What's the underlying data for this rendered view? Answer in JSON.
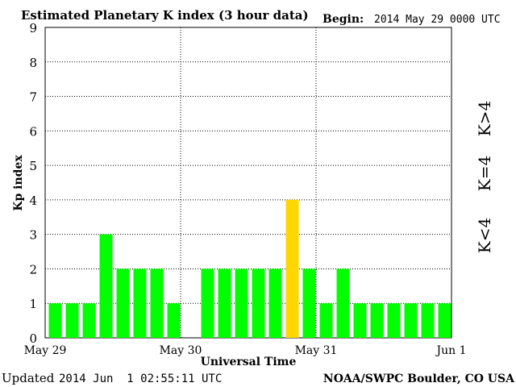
{
  "chart_data": {
    "type": "bar",
    "title": "Estimated Planetary K index (3 hour data)",
    "begin_label": "Begin:",
    "begin_value": "2014 May 29 0000 UTC",
    "xlabel": "Universal Time",
    "ylabel": "Kp index",
    "ylim": [
      0,
      9
    ],
    "y_ticks": [
      "0",
      "1",
      "2",
      "3",
      "4",
      "5",
      "6",
      "7",
      "8",
      "9"
    ],
    "x_ticks": [
      "May 29",
      "May 30",
      "May 31",
      "Jun 1"
    ],
    "grid": true,
    "values": [
      1,
      1,
      1,
      3,
      2,
      2,
      2,
      1,
      0,
      2,
      2,
      2,
      2,
      2,
      4,
      2,
      1,
      2,
      1,
      1,
      1,
      1,
      1,
      1
    ],
    "legend": [
      {
        "label": "K<4",
        "color": "#00ff00"
      },
      {
        "label": "K=4",
        "color": "#ffd700"
      },
      {
        "label": "K>4",
        "color": "#ff3300"
      }
    ]
  },
  "footer": {
    "updated_label": "Updated",
    "updated_value": "2014 Jun  1 02:55:11 UTC",
    "source": "NOAA/SWPC Boulder, CO USA"
  }
}
